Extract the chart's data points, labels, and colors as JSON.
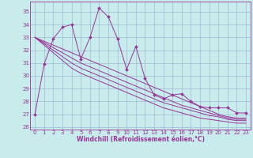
{
  "xlabel": "Windchill (Refroidissement éolien,°C)",
  "bg_color": "#c8ecec",
  "line_color": "#993399",
  "grid_color": "#99aacc",
  "xlim": [
    -0.5,
    23.5
  ],
  "ylim": [
    25.8,
    35.8
  ],
  "yticks": [
    26,
    27,
    28,
    29,
    30,
    31,
    32,
    33,
    34,
    35
  ],
  "xticks": [
    0,
    1,
    2,
    3,
    4,
    5,
    6,
    7,
    8,
    9,
    10,
    11,
    12,
    13,
    14,
    15,
    16,
    17,
    18,
    19,
    20,
    21,
    22,
    23
  ],
  "jagged": [
    27.0,
    30.9,
    32.9,
    33.8,
    34.0,
    31.3,
    33.0,
    35.3,
    34.6,
    32.9,
    30.5,
    32.3,
    29.8,
    28.5,
    28.2,
    28.5,
    28.6,
    28.0,
    27.6,
    27.5,
    27.5,
    27.5,
    27.1,
    27.1
  ],
  "trend1": [
    33.0,
    32.7,
    32.4,
    32.1,
    31.8,
    31.5,
    31.2,
    30.9,
    30.6,
    30.3,
    30.0,
    29.7,
    29.4,
    29.1,
    28.8,
    28.5,
    28.2,
    27.9,
    27.6,
    27.3,
    27.0,
    26.8,
    26.7,
    26.7
  ],
  "trend2": [
    33.0,
    32.6,
    32.2,
    31.8,
    31.4,
    31.0,
    30.7,
    30.4,
    30.1,
    29.8,
    29.5,
    29.2,
    28.9,
    28.6,
    28.3,
    28.0,
    27.7,
    27.5,
    27.3,
    27.1,
    26.9,
    26.7,
    26.6,
    26.6
  ],
  "trend3": [
    33.0,
    32.5,
    32.0,
    31.5,
    31.0,
    30.6,
    30.3,
    30.0,
    29.7,
    29.4,
    29.1,
    28.8,
    28.5,
    28.2,
    27.9,
    27.7,
    27.5,
    27.3,
    27.1,
    26.9,
    26.8,
    26.6,
    26.5,
    26.5
  ],
  "trend4": [
    33.0,
    32.4,
    31.8,
    31.2,
    30.6,
    30.2,
    29.9,
    29.6,
    29.3,
    29.0,
    28.7,
    28.4,
    28.1,
    27.8,
    27.5,
    27.3,
    27.1,
    26.9,
    26.7,
    26.6,
    26.5,
    26.4,
    26.3,
    26.3
  ]
}
